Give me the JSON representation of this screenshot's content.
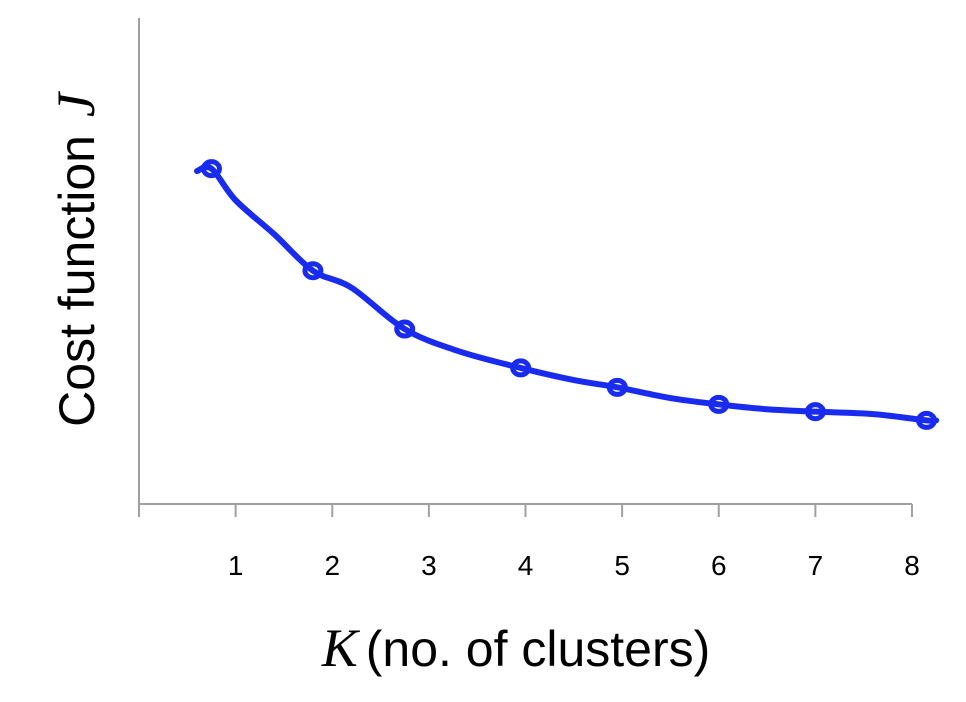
{
  "chart_data": {
    "type": "line",
    "xlabel": {
      "variable": "K",
      "text": "(no. of clusters)"
    },
    "ylabel": {
      "text": "Cost function",
      "variable": "J"
    },
    "x_ticks": [
      "1",
      "2",
      "3",
      "4",
      "5",
      "6",
      "7",
      "8"
    ],
    "xlim": [
      0,
      8
    ],
    "ylim": [
      0,
      1
    ],
    "y_ticks_shown": false,
    "grid": false,
    "series": [
      {
        "color": "#1a2bf0",
        "points": [
          {
            "x": 0.6,
            "y": 0.685
          },
          {
            "x": 0.75,
            "y": 0.69
          },
          {
            "x": 1.0,
            "y": 0.625
          },
          {
            "x": 1.4,
            "y": 0.555
          },
          {
            "x": 1.8,
            "y": 0.48
          },
          {
            "x": 2.2,
            "y": 0.445
          },
          {
            "x": 2.75,
            "y": 0.36
          },
          {
            "x": 3.3,
            "y": 0.315
          },
          {
            "x": 3.95,
            "y": 0.28
          },
          {
            "x": 4.5,
            "y": 0.255
          },
          {
            "x": 4.95,
            "y": 0.24
          },
          {
            "x": 5.5,
            "y": 0.218
          },
          {
            "x": 6.0,
            "y": 0.205
          },
          {
            "x": 6.5,
            "y": 0.195
          },
          {
            "x": 7.0,
            "y": 0.19
          },
          {
            "x": 7.6,
            "y": 0.185
          },
          {
            "x": 8.15,
            "y": 0.172
          },
          {
            "x": 8.25,
            "y": 0.172
          }
        ],
        "markers_at": [
          0.75,
          1.8,
          2.75,
          3.95,
          4.95,
          6.0,
          7.0,
          8.15
        ]
      }
    ]
  }
}
